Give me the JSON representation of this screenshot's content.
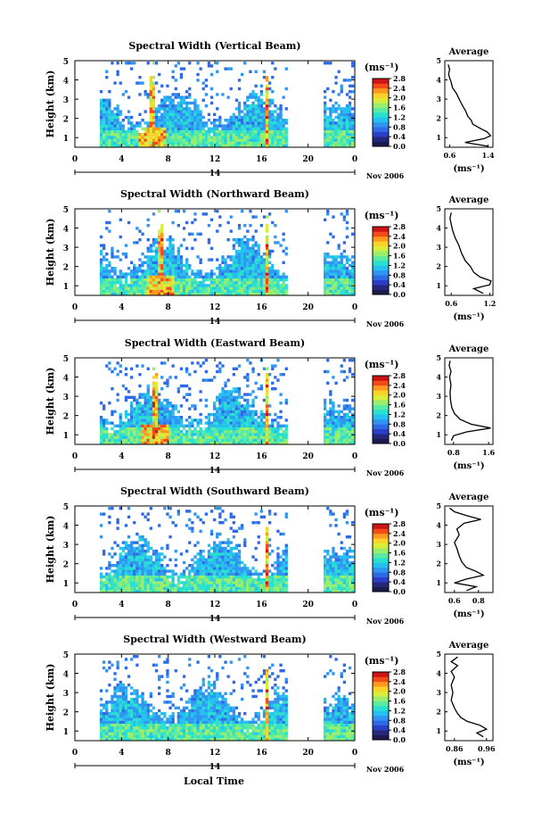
{
  "figure": {
    "x_label": "Local Time",
    "date_label": "Nov 2006",
    "day_label": "14",
    "unit_label": "(ms⁻¹)",
    "height_label": "Height (km)",
    "average_title": "Average",
    "average_unit": "(ms⁻¹)"
  },
  "colorbar": {
    "colors": [
      "#1a1a50",
      "#26267a",
      "#2a3fc8",
      "#2f6ae6",
      "#2f95f0",
      "#23c0f0",
      "#29e0d0",
      "#5aeaa0",
      "#9bee6a",
      "#d8ee3a",
      "#fbd22a",
      "#fb9a1e",
      "#f24a18",
      "#cc1414"
    ]
  },
  "chart_data": [
    {
      "type": "heatmap",
      "title": "Spectral Width (Vertical Beam)",
      "xlabel": "",
      "ylabel": "Height (km)",
      "x_ticks": [
        "0",
        "4",
        "8",
        "12",
        "16",
        "20",
        "0"
      ],
      "xlim": [
        0,
        24
      ],
      "ylim": [
        0.5,
        5
      ],
      "y_ticks": [
        "1",
        "2",
        "3",
        "4",
        "5"
      ],
      "colorbar_ticks": [
        "0.0",
        "0.4",
        "0.8",
        "1.2",
        "1.6",
        "2.0",
        "2.4",
        "2.8"
      ],
      "colorbar_range": [
        0,
        2.8
      ],
      "hot_spots": [
        6.5,
        16.3
      ],
      "average": {
        "title": "Average",
        "xlabel": "(ms⁻¹)",
        "x_ticks": [
          "0.6",
          "1.4"
        ],
        "xlim": [
          0.5,
          1.5
        ],
        "y_ticks": [
          "1",
          "2",
          "3",
          "4",
          "5"
        ],
        "ylim": [
          0.5,
          5
        ],
        "profile": [
          [
            0.55,
            1.4
          ],
          [
            0.75,
            0.92
          ],
          [
            0.95,
            1.32
          ],
          [
            1.1,
            1.45
          ],
          [
            1.3,
            1.38
          ],
          [
            1.5,
            1.22
          ],
          [
            1.7,
            1.08
          ],
          [
            1.9,
            1.05
          ],
          [
            2.1,
            0.98
          ],
          [
            2.4,
            0.93
          ],
          [
            2.7,
            0.86
          ],
          [
            3.0,
            0.8
          ],
          [
            3.3,
            0.74
          ],
          [
            3.6,
            0.66
          ],
          [
            3.9,
            0.63
          ],
          [
            4.1,
            0.6
          ],
          [
            4.3,
            0.58
          ],
          [
            4.55,
            0.6
          ],
          [
            4.8,
            0.57
          ]
        ]
      }
    },
    {
      "type": "heatmap",
      "title": "Spectral Width (Northward Beam)",
      "xlabel": "",
      "ylabel": "Height (km)",
      "x_ticks": [
        "0",
        "4",
        "8",
        "12",
        "16",
        "20",
        "0"
      ],
      "xlim": [
        0,
        24
      ],
      "ylim": [
        0.5,
        5
      ],
      "y_ticks": [
        "1",
        "2",
        "3",
        "4",
        "5"
      ],
      "colorbar_ticks": [
        "0.0",
        "0.4",
        "0.8",
        "1.2",
        "1.6",
        "2.0",
        "2.4",
        "2.8"
      ],
      "colorbar_range": [
        0,
        2.8
      ],
      "hot_spots": [
        7.2,
        16.3
      ],
      "average": {
        "title": "Average",
        "xlabel": "(ms⁻¹)",
        "x_ticks": [
          "0.6",
          "1.2"
        ],
        "xlim": [
          0.5,
          1.25
        ],
        "y_ticks": [
          "1",
          "2",
          "3",
          "4",
          "5"
        ],
        "ylim": [
          0.5,
          5
        ],
        "profile": [
          [
            0.6,
            1.1
          ],
          [
            0.85,
            0.95
          ],
          [
            1.05,
            1.2
          ],
          [
            1.25,
            1.22
          ],
          [
            1.45,
            1.05
          ],
          [
            1.7,
            0.95
          ],
          [
            2.0,
            0.9
          ],
          [
            2.3,
            0.82
          ],
          [
            2.7,
            0.76
          ],
          [
            3.1,
            0.72
          ],
          [
            3.5,
            0.66
          ],
          [
            3.9,
            0.62
          ],
          [
            4.2,
            0.6
          ],
          [
            4.5,
            0.58
          ],
          [
            4.8,
            0.6
          ]
        ]
      }
    },
    {
      "type": "heatmap",
      "title": "Spectral Width (Eastward Beam)",
      "xlabel": "",
      "ylabel": "Height (km)",
      "x_ticks": [
        "0",
        "4",
        "8",
        "12",
        "16",
        "20",
        "0"
      ],
      "xlim": [
        0,
        24
      ],
      "ylim": [
        0.5,
        5
      ],
      "y_ticks": [
        "1",
        "2",
        "3",
        "4",
        "5"
      ],
      "colorbar_ticks": [
        "0.0",
        "0.4",
        "0.8",
        "1.2",
        "1.6",
        "2.0",
        "2.4",
        "2.8"
      ],
      "colorbar_range": [
        0,
        2.8
      ],
      "hot_spots": [
        6.8,
        16.3
      ],
      "average": {
        "title": "Average",
        "xlabel": "(ms⁻¹)",
        "x_ticks": [
          "0.8",
          "1.6"
        ],
        "xlim": [
          0.6,
          1.7
        ],
        "y_ticks": [
          "1",
          "2",
          "3",
          "4",
          "5"
        ],
        "ylim": [
          0.5,
          5
        ],
        "profile": [
          [
            0.7,
            0.75
          ],
          [
            0.95,
            0.8
          ],
          [
            1.15,
            1.1
          ],
          [
            1.35,
            1.65
          ],
          [
            1.55,
            1.2
          ],
          [
            1.8,
            0.95
          ],
          [
            2.1,
            0.82
          ],
          [
            2.4,
            0.76
          ],
          [
            2.8,
            0.73
          ],
          [
            3.2,
            0.72
          ],
          [
            3.6,
            0.74
          ],
          [
            4.0,
            0.71
          ],
          [
            4.3,
            0.74
          ],
          [
            4.6,
            0.7
          ],
          [
            4.85,
            0.72
          ]
        ]
      }
    },
    {
      "type": "heatmap",
      "title": "Spectral Width (Southward Beam)",
      "xlabel": "",
      "ylabel": "Height (km)",
      "x_ticks": [
        "0",
        "4",
        "8",
        "12",
        "16",
        "20",
        "0"
      ],
      "xlim": [
        0,
        24
      ],
      "ylim": [
        0.5,
        5
      ],
      "y_ticks": [
        "1",
        "2",
        "3",
        "4",
        "5"
      ],
      "colorbar_ticks": [
        "0.0",
        "0.4",
        "0.8",
        "1.2",
        "1.6",
        "2.0",
        "2.4",
        "2.8"
      ],
      "colorbar_range": [
        0,
        2.8
      ],
      "hot_spots": [
        16.3
      ],
      "average": {
        "title": "Average",
        "xlabel": "(ms⁻¹)",
        "x_ticks": [
          "0.6",
          "0.8"
        ],
        "xlim": [
          0.52,
          0.92
        ],
        "y_ticks": [
          "1",
          "2",
          "3",
          "4",
          "5"
        ],
        "ylim": [
          0.5,
          5
        ],
        "profile": [
          [
            0.6,
            0.7
          ],
          [
            0.8,
            0.78
          ],
          [
            1.0,
            0.6
          ],
          [
            1.2,
            0.7
          ],
          [
            1.4,
            0.84
          ],
          [
            1.6,
            0.78
          ],
          [
            1.8,
            0.7
          ],
          [
            2.1,
            0.66
          ],
          [
            2.4,
            0.64
          ],
          [
            2.8,
            0.62
          ],
          [
            3.1,
            0.6
          ],
          [
            3.5,
            0.64
          ],
          [
            3.8,
            0.62
          ],
          [
            4.1,
            0.68
          ],
          [
            4.3,
            0.82
          ],
          [
            4.5,
            0.7
          ],
          [
            4.7,
            0.6
          ],
          [
            4.9,
            0.56
          ]
        ]
      }
    },
    {
      "type": "heatmap",
      "title": "Spectral Width (Westward Beam)",
      "xlabel": "Local Time",
      "ylabel": "Height (km)",
      "x_ticks": [
        "0",
        "4",
        "8",
        "12",
        "16",
        "20",
        "0"
      ],
      "xlim": [
        0,
        24
      ],
      "ylim": [
        0.5,
        5
      ],
      "y_ticks": [
        "1",
        "2",
        "3",
        "4",
        "5"
      ],
      "colorbar_ticks": [
        "0.0",
        "0.4",
        "0.8",
        "1.2",
        "1.6",
        "2.0",
        "2.4",
        "2.8"
      ],
      "colorbar_range": [
        0,
        2.8
      ],
      "hot_spots": [
        16.3
      ],
      "average": {
        "title": "Average",
        "xlabel": "(ms⁻¹)",
        "x_ticks": [
          "0.86",
          "0.96"
        ],
        "xlim": [
          0.83,
          0.98
        ],
        "y_ticks": [
          "1",
          "2",
          "3",
          "4",
          "5"
        ],
        "ylim": [
          0.5,
          5
        ],
        "profile": [
          [
            0.7,
            0.95
          ],
          [
            0.9,
            0.93
          ],
          [
            1.1,
            0.96
          ],
          [
            1.3,
            0.94
          ],
          [
            1.5,
            0.9
          ],
          [
            1.7,
            0.88
          ],
          [
            1.9,
            0.87
          ],
          [
            2.2,
            0.86
          ],
          [
            2.6,
            0.85
          ],
          [
            3.0,
            0.855
          ],
          [
            3.4,
            0.85
          ],
          [
            3.8,
            0.86
          ],
          [
            4.1,
            0.85
          ],
          [
            4.4,
            0.87
          ],
          [
            4.6,
            0.85
          ],
          [
            4.85,
            0.87
          ]
        ]
      }
    }
  ]
}
